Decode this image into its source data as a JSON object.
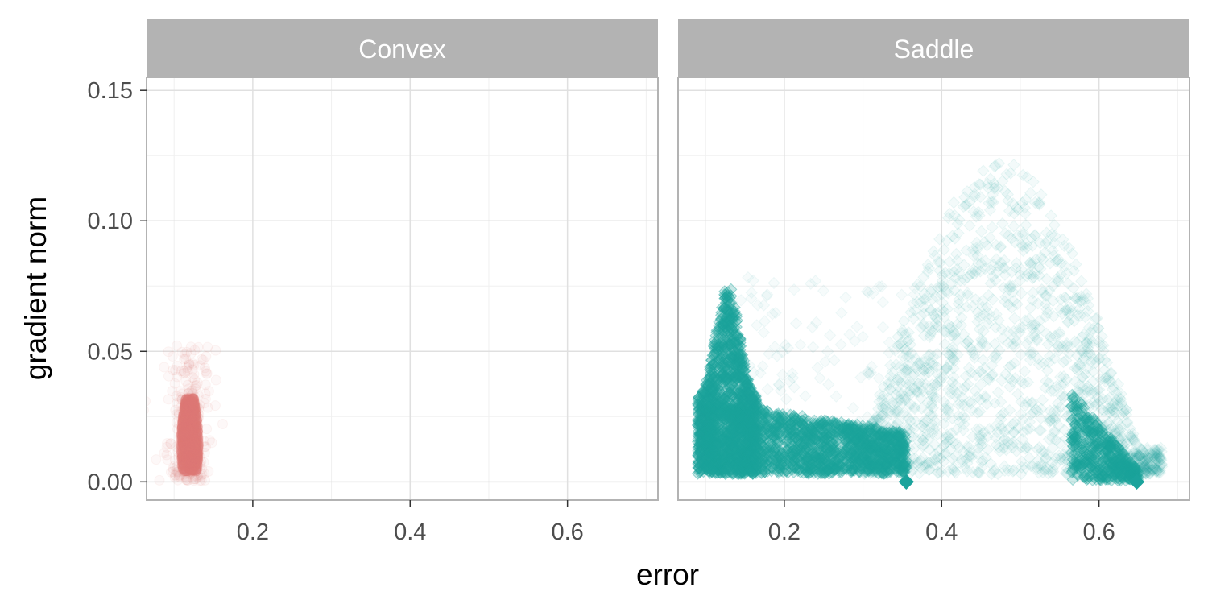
{
  "chart_data": {
    "type": "scatter",
    "xlabel": "error",
    "ylabel": "gradient norm",
    "xlim": [
      0.065,
      0.715
    ],
    "ylim": [
      -0.007,
      0.155
    ],
    "x_ticks": [
      0.2,
      0.4,
      0.6
    ],
    "x_tick_labels": [
      "0.2",
      "0.4",
      "0.6"
    ],
    "y_ticks": [
      0.0,
      0.05,
      0.1,
      0.15
    ],
    "y_tick_labels": [
      "0.00",
      "0.05",
      "0.10",
      "0.15"
    ],
    "grid": true,
    "legend": "none",
    "panels": [
      {
        "label": "Convex",
        "color": "#E07B78",
        "marker": "circle",
        "clusters": [
          {
            "x_center": 0.12,
            "x_spread": 0.012,
            "y_min": 0.004,
            "y_max": 0.032,
            "density": "dense"
          },
          {
            "x_center": 0.12,
            "x_spread": 0.02,
            "y_min": 0.0,
            "y_max": 0.052,
            "density": "sparse"
          }
        ]
      },
      {
        "label": "Saddle",
        "color": "#1BA39C",
        "marker": "diamond",
        "clusters": [
          {
            "x_range": [
              0.09,
              0.16
            ],
            "y_range": [
              0.003,
              0.07
            ],
            "density": "dense"
          },
          {
            "x_range": [
              0.09,
              0.355
            ],
            "y_range": [
              0.003,
              0.03
            ],
            "density": "dense"
          },
          {
            "x_range": [
              0.33,
              0.65
            ],
            "y_range": [
              0.0,
              0.12
            ],
            "density": "sparse"
          },
          {
            "x_range": [
              0.58,
              0.65
            ],
            "y_range": [
              0.0,
              0.03
            ],
            "density": "dense"
          }
        ],
        "points": [
          {
            "x": 0.355,
            "y": 0.0
          },
          {
            "x": 0.648,
            "y": 0.0
          }
        ]
      }
    ]
  }
}
